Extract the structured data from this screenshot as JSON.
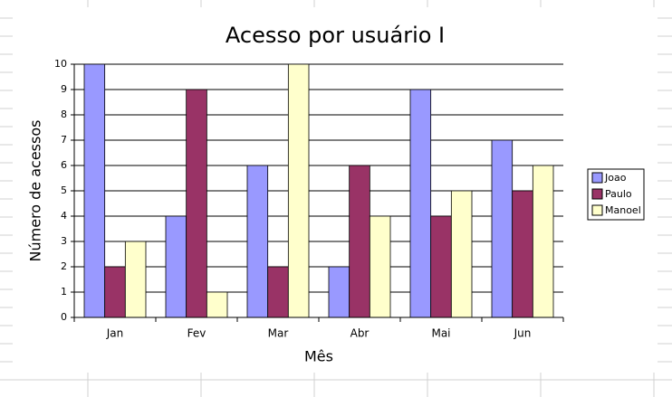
{
  "chart_data": {
    "type": "bar",
    "title": "Acesso por usuário I",
    "x_label": "Mês",
    "y_label": "Número de acessos",
    "categories": [
      "Jan",
      "Fev",
      "Mar",
      "Abr",
      "Mai",
      "Jun"
    ],
    "series": [
      {
        "name": "Joao",
        "color": "#9999ff",
        "values": [
          10,
          4,
          6,
          2,
          9,
          7
        ]
      },
      {
        "name": "Paulo",
        "color": "#993366",
        "values": [
          2,
          9,
          2,
          6,
          4,
          5
        ]
      },
      {
        "name": "Manoel",
        "color": "#ffffcc",
        "values": [
          3,
          1,
          10,
          4,
          5,
          6
        ]
      }
    ],
    "ylim": [
      0,
      10
    ],
    "yticks": [
      0,
      1,
      2,
      3,
      4,
      5,
      6,
      7,
      8,
      9,
      10
    ],
    "grid": true,
    "legend": "right"
  }
}
